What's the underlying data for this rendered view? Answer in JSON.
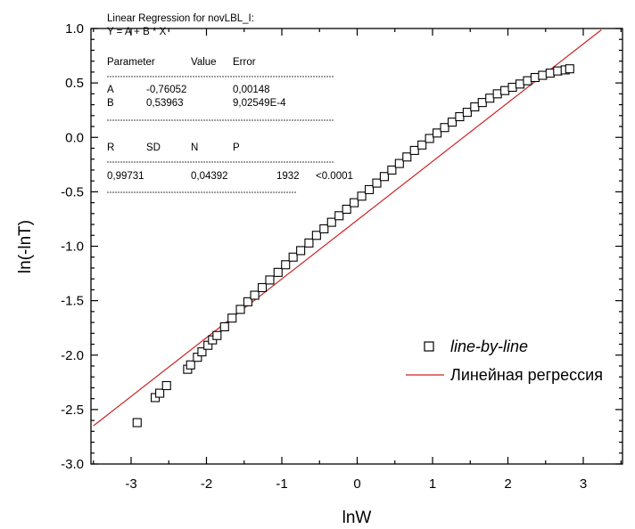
{
  "chart_data": {
    "type": "scatter",
    "xlabel": "lnW",
    "ylabel": "ln(-lnT)",
    "xlim": [
      -3.5,
      3.5
    ],
    "ylim": [
      -3.0,
      1.0
    ],
    "x_ticks": [
      "-3",
      "-2",
      "-1",
      "0",
      "1",
      "2",
      "3"
    ],
    "y_ticks": [
      "-3.0",
      "-2.5",
      "-2.0",
      "-1.5",
      "-1.0",
      "-0.5",
      "0.0",
      "0.5",
      "1.0"
    ],
    "grid": false,
    "legend_position": "bottom-right",
    "series": [
      {
        "name": "line-by-line",
        "kind": "scatter",
        "marker": "open-square",
        "color": "#000000",
        "points": [
          [
            -2.92,
            -2.62
          ],
          [
            -2.68,
            -2.39
          ],
          [
            -2.62,
            -2.35
          ],
          [
            -2.53,
            -2.28
          ],
          [
            -2.25,
            -2.13
          ],
          [
            -2.21,
            -2.09
          ],
          [
            -2.12,
            -2.02
          ],
          [
            -2.06,
            -1.97
          ],
          [
            -1.98,
            -1.91
          ],
          [
            -1.92,
            -1.86
          ],
          [
            -1.86,
            -1.82
          ],
          [
            -1.76,
            -1.74
          ],
          [
            -1.66,
            -1.66
          ],
          [
            -1.55,
            -1.58
          ],
          [
            -1.45,
            -1.51
          ],
          [
            -1.36,
            -1.45
          ],
          [
            -1.26,
            -1.38
          ],
          [
            -1.16,
            -1.31
          ],
          [
            -1.05,
            -1.24
          ],
          [
            -0.95,
            -1.17
          ],
          [
            -0.85,
            -1.1
          ],
          [
            -0.75,
            -1.04
          ],
          [
            -0.64,
            -0.97
          ],
          [
            -0.54,
            -0.9
          ],
          [
            -0.44,
            -0.84
          ],
          [
            -0.34,
            -0.78
          ],
          [
            -0.24,
            -0.72
          ],
          [
            -0.14,
            -0.66
          ],
          [
            -0.04,
            -0.6
          ],
          [
            0.06,
            -0.54
          ],
          [
            0.16,
            -0.48
          ],
          [
            0.26,
            -0.42
          ],
          [
            0.36,
            -0.36
          ],
          [
            0.46,
            -0.3
          ],
          [
            0.56,
            -0.24
          ],
          [
            0.66,
            -0.18
          ],
          [
            0.76,
            -0.12
          ],
          [
            0.86,
            -0.07
          ],
          [
            0.96,
            -0.01
          ],
          [
            1.06,
            0.04
          ],
          [
            1.16,
            0.09
          ],
          [
            1.26,
            0.14
          ],
          [
            1.36,
            0.19
          ],
          [
            1.46,
            0.23
          ],
          [
            1.56,
            0.28
          ],
          [
            1.66,
            0.32
          ],
          [
            1.76,
            0.36
          ],
          [
            1.86,
            0.4
          ],
          [
            1.96,
            0.43
          ],
          [
            2.06,
            0.46
          ],
          [
            2.16,
            0.49
          ],
          [
            2.26,
            0.52
          ],
          [
            2.36,
            0.55
          ],
          [
            2.46,
            0.57
          ],
          [
            2.56,
            0.59
          ],
          [
            2.66,
            0.61
          ],
          [
            2.76,
            0.62
          ],
          [
            2.82,
            0.63
          ]
        ]
      },
      {
        "name": "Линейная регрессия",
        "kind": "line",
        "color": "#cc2222",
        "intercept": -0.76052,
        "slope": 0.53963,
        "x_range": [
          -3.5,
          3.24
        ]
      }
    ],
    "regression_box": {
      "title_line1": "Linear Regression for novLBL_I:",
      "title_line2": "Y = A + B * X",
      "param_headers": [
        "Parameter",
        "Value",
        "Error"
      ],
      "param_rows": [
        [
          "A",
          "-0,76052",
          "0,00148"
        ],
        [
          "B",
          "0,53963",
          "9,02549E-4"
        ]
      ],
      "stat_headers": [
        "R",
        "SD",
        "N",
        "P"
      ],
      "stat_values": [
        "0,99731",
        "0,04392",
        "1932",
        "<0.0001"
      ]
    }
  }
}
